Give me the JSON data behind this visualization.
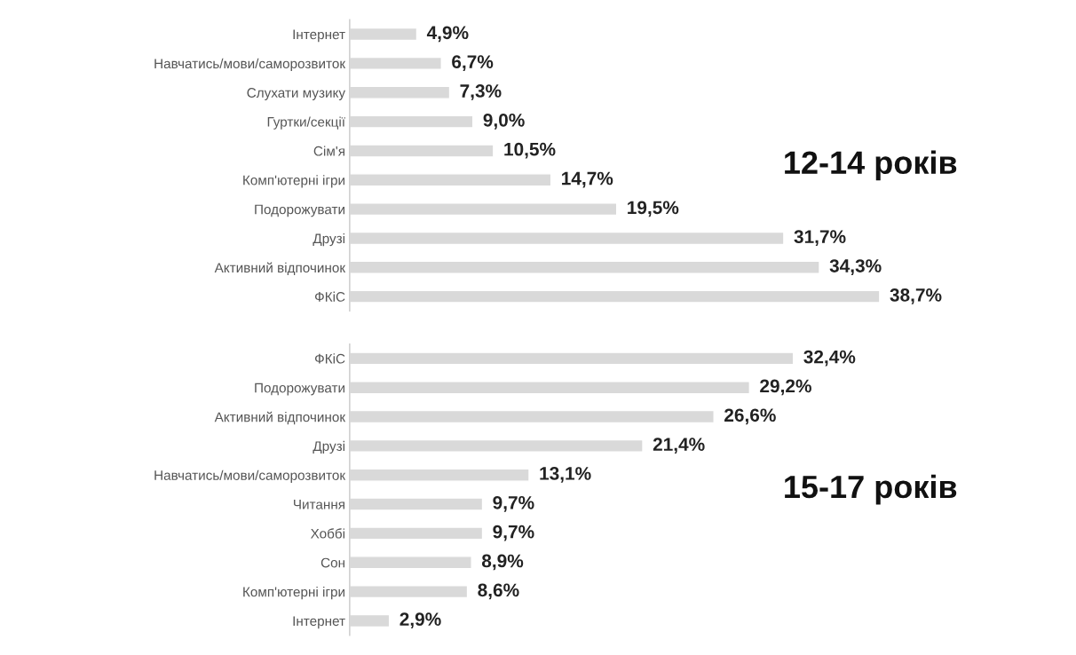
{
  "chart_data": [
    {
      "type": "bar",
      "orientation": "horizontal",
      "title": "12-14 років",
      "categories": [
        "Інтернет",
        "Навчатись/мови/саморозвиток",
        "Слухати музику",
        "Гуртки/секції",
        "Сім'я",
        "Комп'ютерні ігри",
        "Подорожувати",
        "Друзі",
        "Активний відпочинок",
        "ФКіС"
      ],
      "values": [
        4.9,
        6.7,
        7.3,
        9.0,
        10.5,
        14.7,
        19.5,
        31.7,
        34.3,
        38.7
      ],
      "value_labels": [
        "4,9%",
        "6,7%",
        "7,3%",
        "9,0%",
        "10,5%",
        "14,7%",
        "19,5%",
        "31,7%",
        "34,3%",
        "38,7%"
      ],
      "color": "#d9d9d9",
      "tick_labels": "y",
      "grid": false
    },
    {
      "type": "bar",
      "orientation": "horizontal",
      "title": "15-17 років",
      "categories": [
        "ФКіС",
        "Подорожувати",
        "Активний відпочинок",
        "Друзі",
        "Навчатись/мови/саморозвиток",
        "Читання",
        "Хоббі",
        "Сон",
        "Комп'ютерні ігри",
        "Інтернет"
      ],
      "values": [
        32.4,
        29.2,
        26.6,
        21.4,
        13.1,
        9.7,
        9.7,
        8.9,
        8.6,
        2.9
      ],
      "value_labels": [
        "32,4%",
        "29,2%",
        "26,6%",
        "21,4%",
        "13,1%",
        "9,7%",
        "9,7%",
        "8,9%",
        "8,6%",
        "2,9%"
      ],
      "color": "#d9d9d9",
      "tick_labels": "y",
      "grid": false
    }
  ]
}
